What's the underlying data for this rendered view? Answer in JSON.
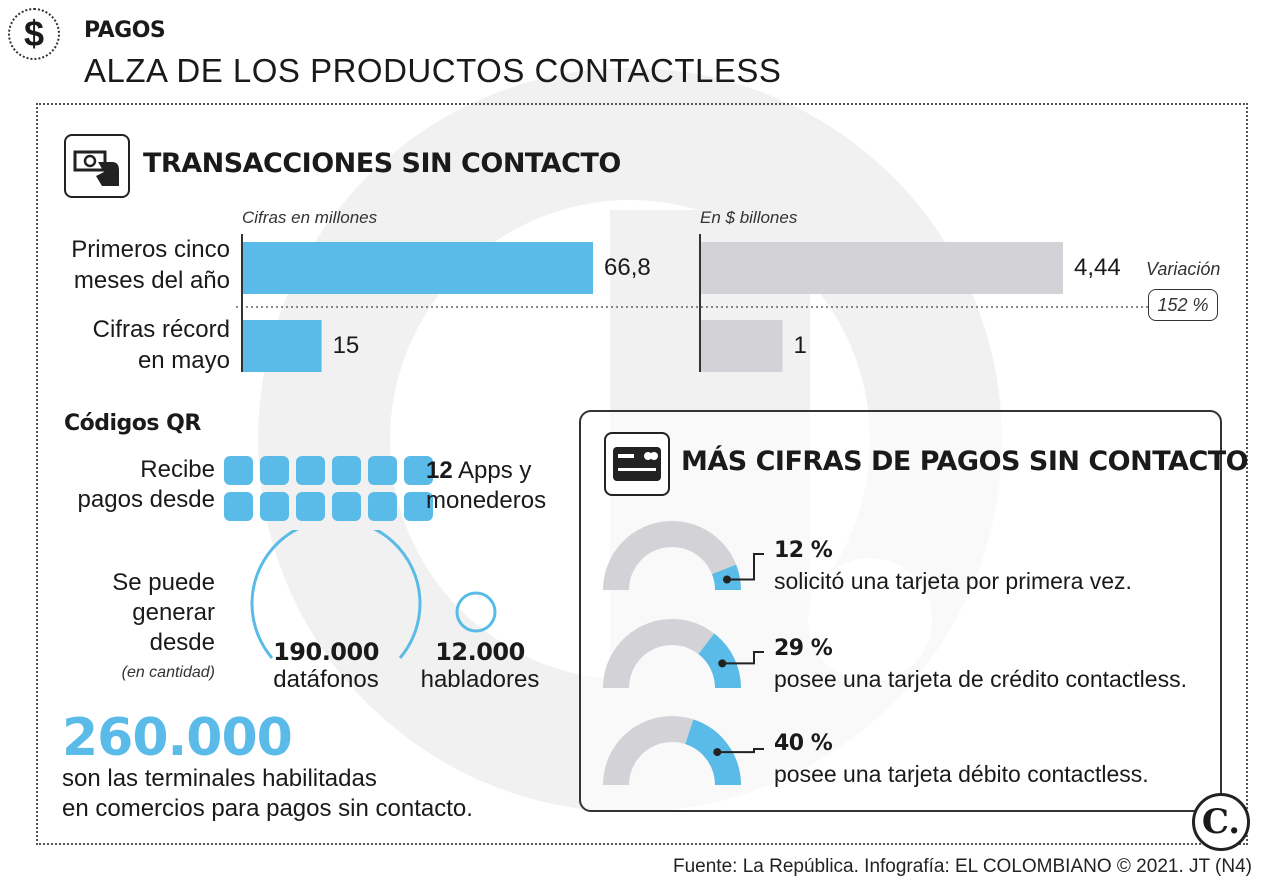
{
  "header": {
    "section_label": "PAGOS",
    "headline": "ALZA DE LOS PRODUCTOS  CONTACTLESS",
    "icon": "dollar-icon"
  },
  "transactions": {
    "title": "TRANSACCIONES SIN CONTACTO",
    "icon": "cash-hand-icon",
    "left_unit": "Cifras en millones",
    "right_unit": "En $ billones",
    "variation_label": "Variación",
    "variation_value": "152 %"
  },
  "chart_data": [
    {
      "type": "bar",
      "orientation": "horizontal",
      "subtitle": "Cifras en millones",
      "categories": [
        "Primeros cinco meses del año",
        "Cifras récord en mayo"
      ],
      "category_lines": [
        [
          "Primeros cinco",
          "meses del año"
        ],
        [
          "Cifras récord",
          "en mayo"
        ]
      ],
      "values": [
        66.8,
        15
      ],
      "value_labels": [
        "66,8",
        "15"
      ],
      "color": "#5bbbe8",
      "xlim": [
        0,
        66.8
      ]
    },
    {
      "type": "bar",
      "orientation": "horizontal",
      "subtitle": "En $ billones",
      "categories": [
        "Primeros cinco meses del año",
        "Cifras récord en mayo"
      ],
      "values": [
        4.44,
        1
      ],
      "value_labels": [
        "4,44",
        "1"
      ],
      "color": "#d3d2d6",
      "xlim": [
        0,
        4.44
      ]
    },
    {
      "type": "pie",
      "style": "gauge",
      "items": [
        {
          "value": 12,
          "label": "12 %",
          "text": "solicitó una tarjeta por primera vez."
        },
        {
          "value": 29,
          "label": "29 %",
          "text": "posee una tarjeta de crédito contactless."
        },
        {
          "value": 40,
          "label": "40 %",
          "text": "posee una tarjeta débito contactless."
        }
      ],
      "fill_color": "#5bbbe8",
      "rest_color": "#d3d2d6"
    }
  ],
  "qr": {
    "title": "Códigos QR",
    "receive_line1": "Recibe",
    "receive_line2": "pagos desde",
    "apps_count": "12",
    "apps_line1": "Apps y",
    "apps_line2": "monederos",
    "generate_line1": "Se puede",
    "generate_line2": "generar desde",
    "generate_note": "(en cantidad)",
    "datafonos_value": "190.000",
    "datafonos_label": "datáfonos",
    "habladores_value": "12.000",
    "habladores_label": "habladores"
  },
  "terminals": {
    "value": "260.000",
    "line1": "son las terminales habilitadas",
    "line2": "en comercios para pagos sin contacto."
  },
  "more": {
    "title": "MÁS CIFRAS  DE PAGOS SIN CONTACTO",
    "icon": "credit-card-icon"
  },
  "footer": {
    "source": "Fuente: La República. Infografía: EL COLOMBIANO © 2021. JT (N4)",
    "logo": "C."
  }
}
